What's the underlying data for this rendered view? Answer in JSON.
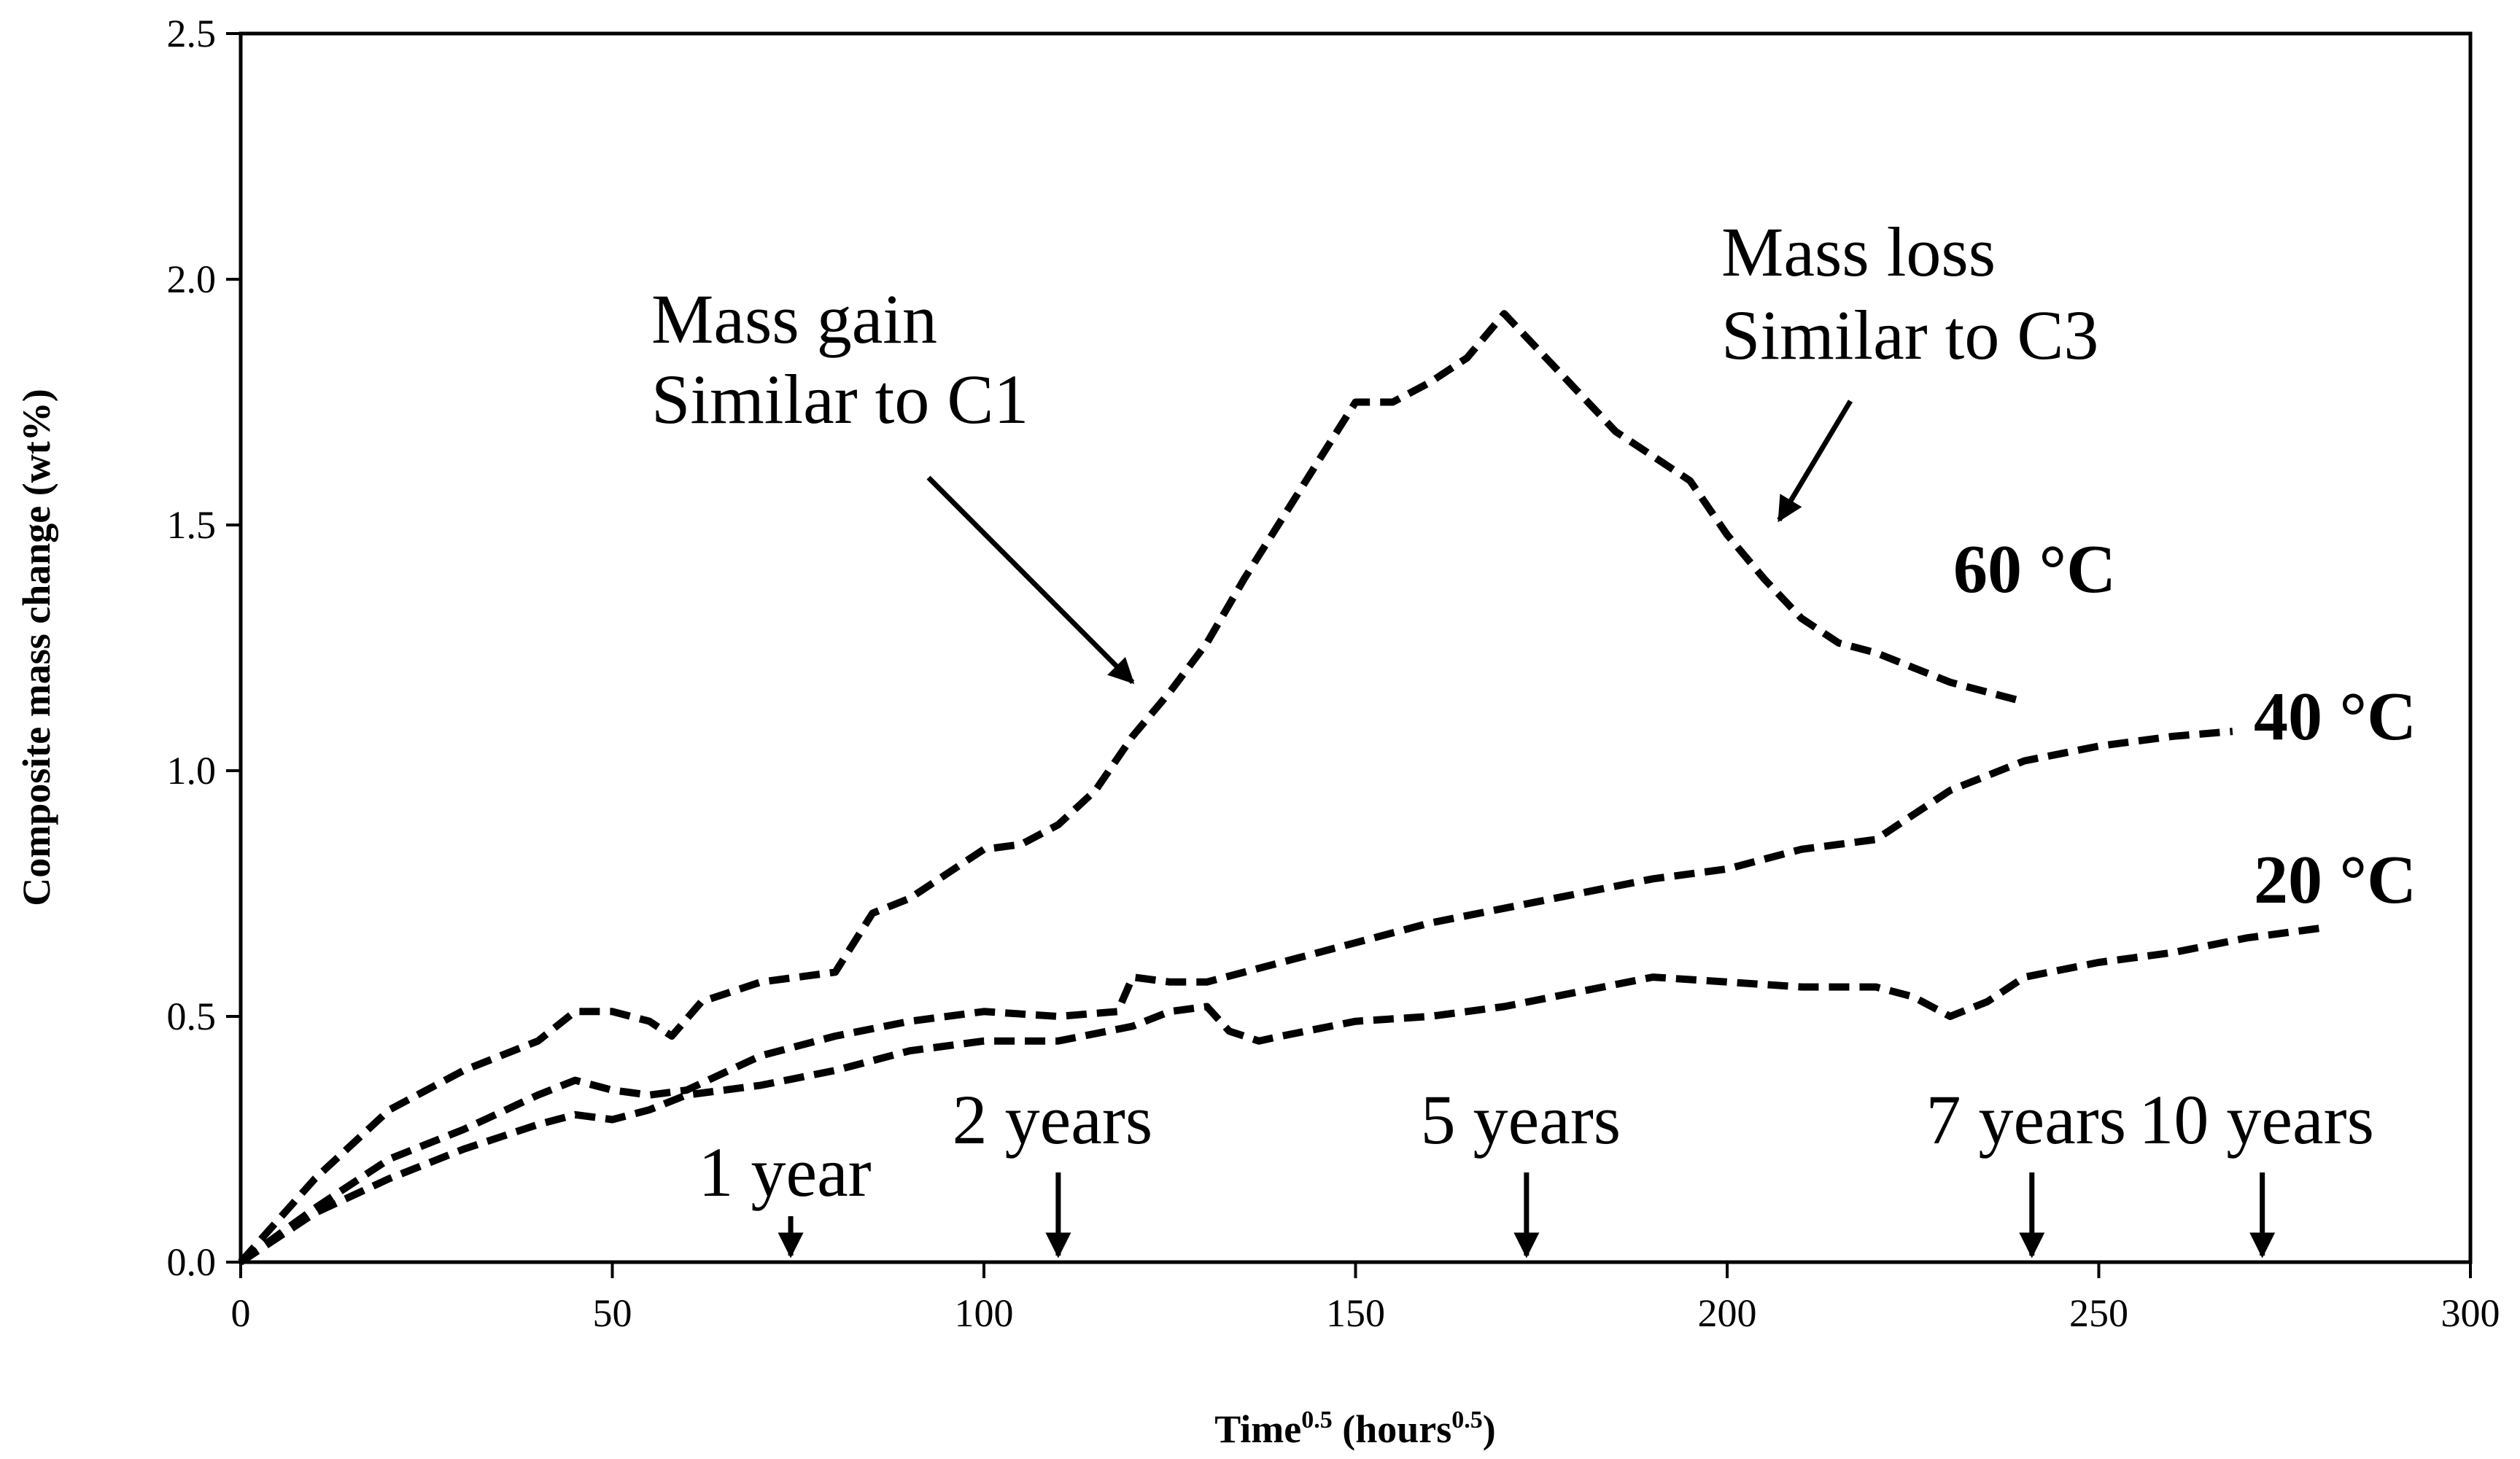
{
  "chart_data": {
    "type": "line",
    "title": "",
    "xlabel": {
      "base": "Time",
      "sup": "0.5",
      "unit_base": " (hours",
      "unit_sup": "0.5",
      "unit_close": ")"
    },
    "ylabel": "Composite mass change (wt%)",
    "xlim": [
      0,
      300
    ],
    "ylim": [
      0,
      2.5
    ],
    "x_ticks": [
      0,
      50,
      100,
      150,
      200,
      250,
      300
    ],
    "y_ticks": [
      0.0,
      0.5,
      1.0,
      1.5,
      2.0,
      2.5
    ],
    "x_tick_labels": [
      "0",
      "50",
      "100",
      "150",
      "200",
      "250",
      "300"
    ],
    "y_tick_labels": [
      "0.0",
      "0.5",
      "1.0",
      "1.5",
      "2.0",
      "2.5"
    ],
    "grid": false,
    "series": [
      {
        "name": "60 °C",
        "style": "dashed",
        "x": [
          0,
          10,
          20,
          30,
          40,
          45,
          50,
          55,
          58,
          62,
          70,
          80,
          85,
          90,
          95,
          100,
          105,
          110,
          115,
          120,
          125,
          130,
          135,
          140,
          145,
          150,
          155,
          160,
          165,
          170,
          175,
          180,
          185,
          190,
          195,
          200,
          205,
          210,
          215,
          220,
          225,
          230,
          235,
          240
        ],
        "y": [
          0.0,
          0.17,
          0.31,
          0.39,
          0.45,
          0.51,
          0.51,
          0.49,
          0.46,
          0.53,
          0.57,
          0.59,
          0.71,
          0.74,
          0.79,
          0.84,
          0.85,
          0.89,
          0.96,
          1.07,
          1.16,
          1.26,
          1.39,
          1.51,
          1.63,
          1.75,
          1.75,
          1.79,
          1.84,
          1.93,
          1.85,
          1.77,
          1.69,
          1.64,
          1.59,
          1.48,
          1.39,
          1.31,
          1.26,
          1.24,
          1.21,
          1.18,
          1.16,
          1.14
        ]
      },
      {
        "name": "40 °C",
        "style": "dashed",
        "x": [
          0,
          10,
          20,
          30,
          40,
          45,
          50,
          55,
          60,
          70,
          80,
          90,
          100,
          110,
          118,
          120,
          125,
          130,
          140,
          150,
          160,
          170,
          180,
          190,
          200,
          210,
          215,
          220,
          230,
          240,
          250,
          260,
          268
        ],
        "y": [
          0.0,
          0.11,
          0.21,
          0.27,
          0.34,
          0.37,
          0.35,
          0.34,
          0.35,
          0.42,
          0.46,
          0.49,
          0.51,
          0.5,
          0.51,
          0.58,
          0.57,
          0.57,
          0.61,
          0.65,
          0.69,
          0.72,
          0.75,
          0.78,
          0.8,
          0.84,
          0.85,
          0.86,
          0.96,
          1.02,
          1.05,
          1.07,
          1.08
        ]
      },
      {
        "name": "20 °C",
        "style": "dashed",
        "x": [
          0,
          10,
          20,
          30,
          40,
          45,
          50,
          55,
          60,
          70,
          80,
          90,
          100,
          110,
          120,
          125,
          130,
          133,
          137,
          140,
          150,
          160,
          170,
          180,
          190,
          200,
          210,
          220,
          225,
          230,
          235,
          240,
          250,
          260,
          270,
          280
        ],
        "y": [
          0.0,
          0.1,
          0.17,
          0.23,
          0.28,
          0.3,
          0.29,
          0.31,
          0.34,
          0.36,
          0.39,
          0.43,
          0.45,
          0.45,
          0.48,
          0.51,
          0.52,
          0.47,
          0.45,
          0.46,
          0.49,
          0.5,
          0.52,
          0.55,
          0.58,
          0.57,
          0.56,
          0.56,
          0.54,
          0.5,
          0.53,
          0.58,
          0.61,
          0.63,
          0.66,
          0.68
        ]
      }
    ],
    "series_labels": [
      "60 °C",
      "40 °C",
      "20 °C"
    ],
    "annotations": [
      {
        "lines": [
          "Mass gain",
          "Similar to C1"
        ],
        "arrow_to": [
          120,
          1.18
        ]
      },
      {
        "lines": [
          "Mass loss",
          "Similar to C3"
        ],
        "arrow_to": [
          207,
          1.51
        ]
      }
    ],
    "time_markers": [
      {
        "label": "1 year",
        "x": 74
      },
      {
        "label": "2 years",
        "x": 110
      },
      {
        "label": "5 years",
        "x": 173
      },
      {
        "label": "7 years",
        "x": 241
      },
      {
        "label": "10 years",
        "x": 272
      }
    ]
  }
}
